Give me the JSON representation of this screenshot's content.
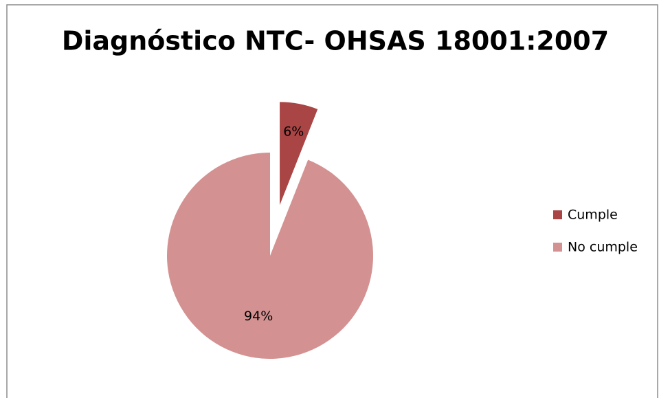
{
  "chart_data": {
    "type": "pie",
    "title": "Diagnóstico NTC- OHSAS 18001:2007",
    "categories": [
      "Cumple",
      "No cumple"
    ],
    "values": [
      6,
      94
    ],
    "value_labels": [
      "6%",
      "94%"
    ],
    "colors": [
      "#a94545",
      "#d39291"
    ],
    "legend": "right"
  }
}
